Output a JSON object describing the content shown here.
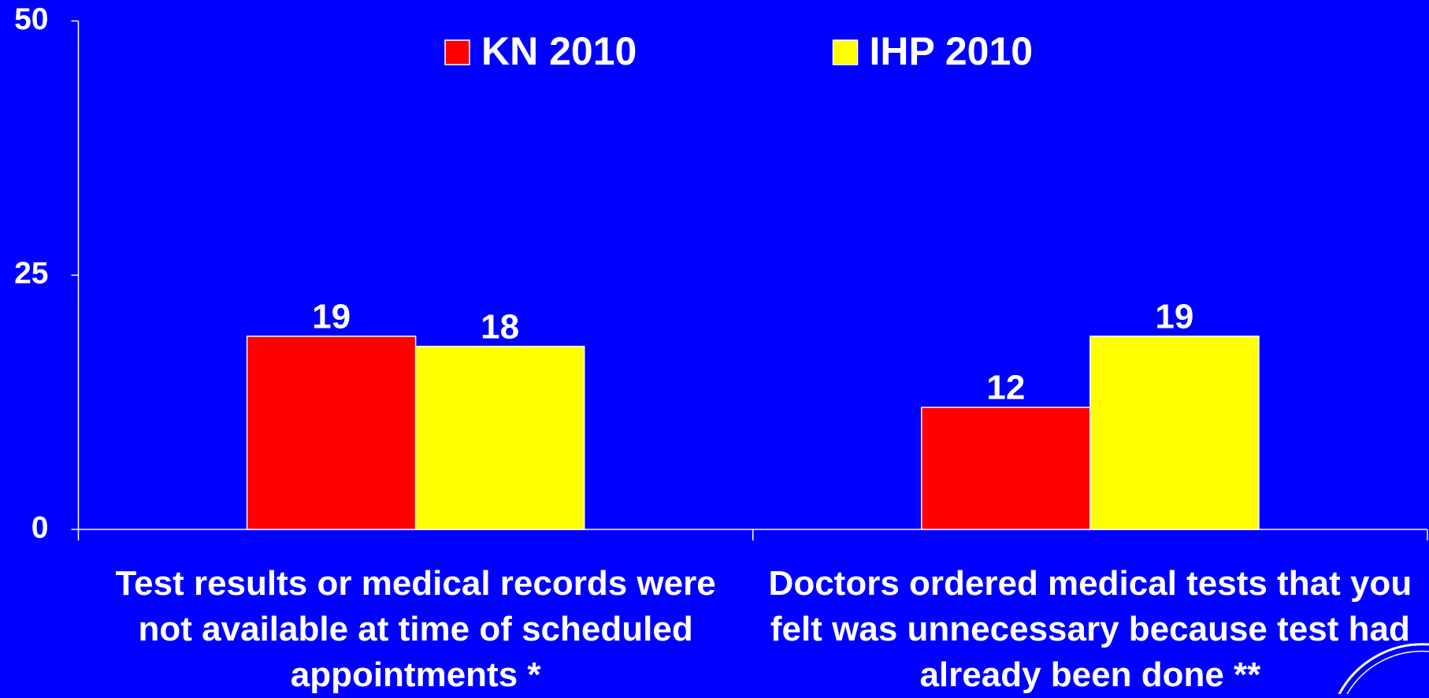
{
  "chart_data": {
    "type": "bar",
    "categories": [
      "Test results or medical records were not available at time of scheduled appointments *",
      "Doctors ordered medical tests that you felt was unnecessary because test had already been done **"
    ],
    "series": [
      {
        "name": "KN 2010",
        "color": "#ff0000",
        "values": [
          19,
          12
        ]
      },
      {
        "name": "IHP 2010",
        "color": "#ffff00",
        "values": [
          18,
          19
        ]
      }
    ],
    "ylim": [
      0,
      50
    ],
    "yticks": [
      0,
      25,
      50
    ],
    "legend": "top"
  }
}
